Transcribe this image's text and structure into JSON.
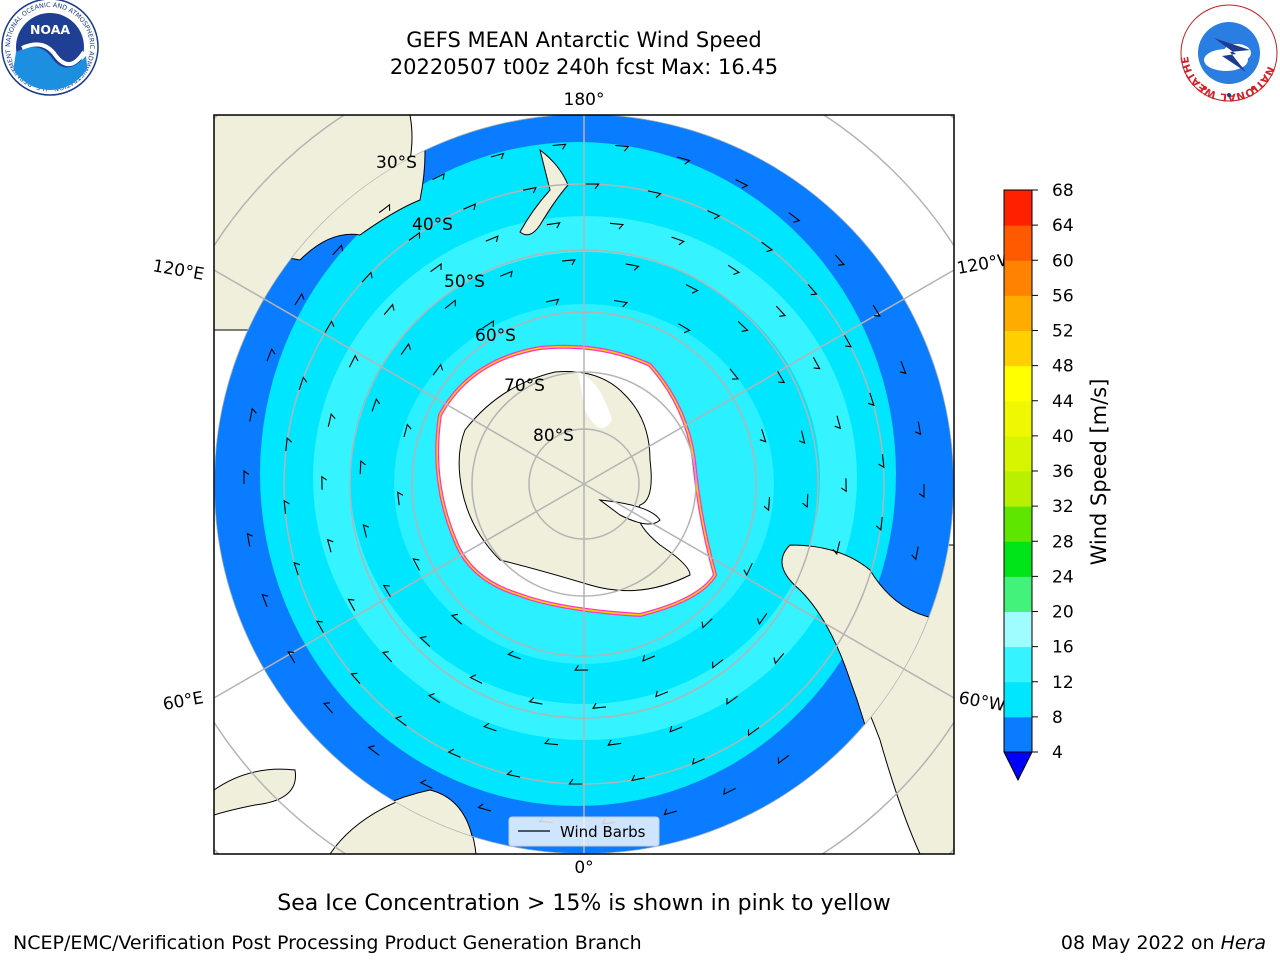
{
  "title": {
    "line1": "GEFS MEAN Antarctic Wind Speed",
    "line2": "20220507 t00z 240h fcst   Max: 16.45"
  },
  "caption": "Sea Ice Concentration > 15% is shown in pink to yellow",
  "footer": {
    "left": "NCEP/EMC/Verification Post Processing Product Generation Branch",
    "right_date": "08 May 2022 on ",
    "right_host": "Hera"
  },
  "logos": {
    "noara_text": "NOAA",
    "noaa_ring_text": "NATIONAL OCEANIC AND ATMOSPHERIC ADMINISTRATION · U.S. DEPARTMENT OF COMMERCE ·",
    "nws_ring_text": "NATIONAL WEATHER SERVICE"
  },
  "map": {
    "projection": "south polar stereographic",
    "longitude_labels": {
      "top": "180°",
      "bottom": "0°",
      "upper_left": "120°E",
      "upper_right": "120°W",
      "lower_left": "60°E",
      "lower_right": "60°W"
    },
    "latitude_labels": [
      "30°S",
      "40°S",
      "50°S",
      "60°S",
      "70°S",
      "80°S"
    ],
    "legend_label": "Wind Barbs"
  },
  "colorbar": {
    "label": "Wind Speed [m/s]",
    "ticks": [
      "4",
      "8",
      "12",
      "16",
      "20",
      "24",
      "28",
      "32",
      "36",
      "40",
      "44",
      "48",
      "52",
      "56",
      "60",
      "64",
      "68"
    ],
    "colors": [
      "#0a7cff",
      "#00e6ff",
      "#35f3ff",
      "#9ffdff",
      "#43f27a",
      "#00e51a",
      "#5ee600",
      "#b9f000",
      "#d8f500",
      "#f0f800",
      "#ffff00",
      "#ffd000",
      "#ffac00",
      "#ff8200",
      "#ff5a00",
      "#ff2000"
    ],
    "under_color": "#0000ff"
  },
  "chart_data": {
    "type": "heatmap",
    "variable": "Wind Speed [m/s]",
    "max": 16.45,
    "levels": [
      4,
      8,
      12,
      16,
      20,
      24,
      28,
      32,
      36,
      40,
      44,
      48,
      52,
      56,
      60,
      64,
      68
    ]
  }
}
